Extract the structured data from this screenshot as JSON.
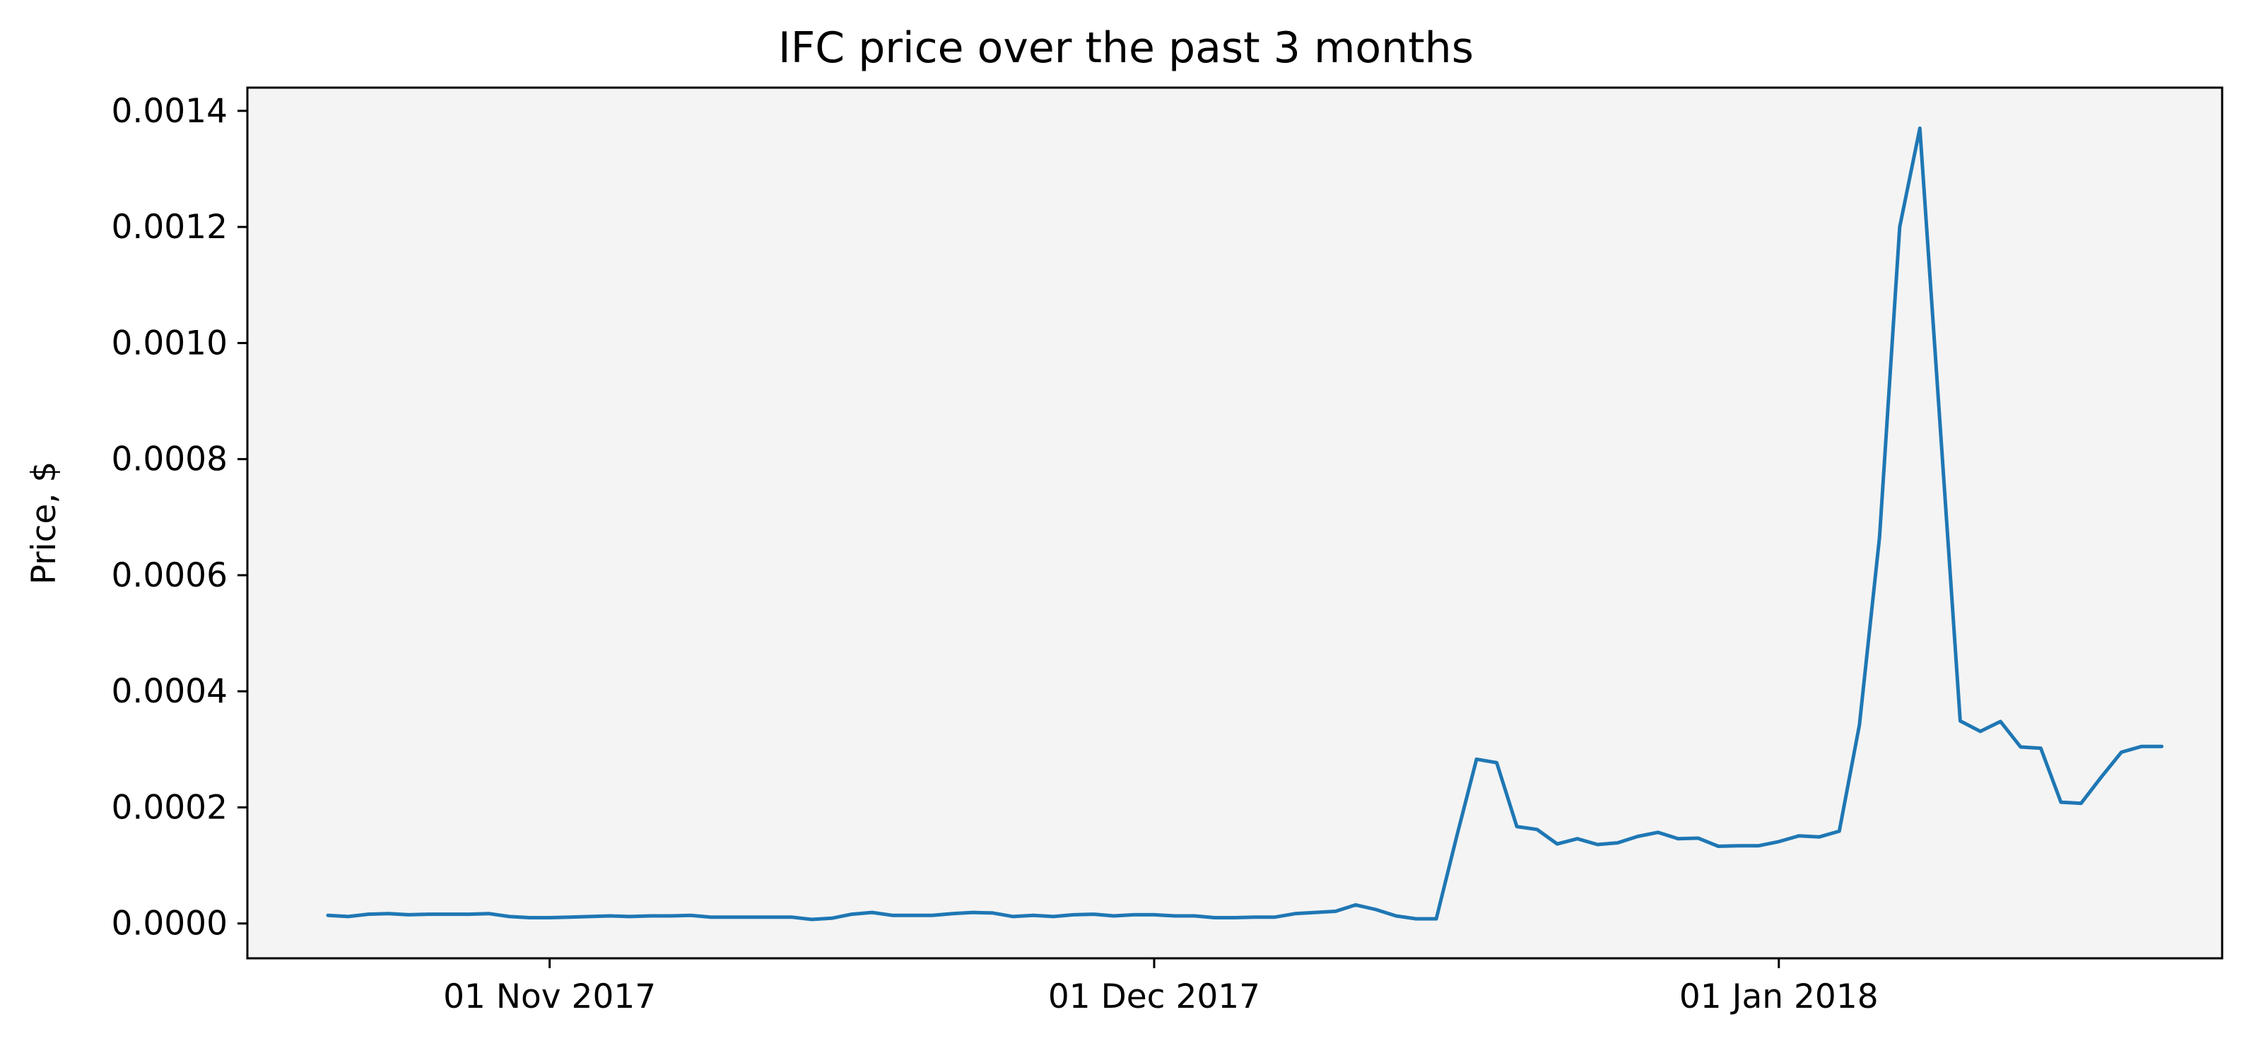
{
  "chart_data": {
    "type": "line",
    "title": "IFC price over the past 3 months",
    "xlabel": "",
    "ylabel": "Price, $",
    "xlim": [
      "2017-10-17",
      "2018-01-23"
    ],
    "ylim": [
      -6e-05,
      0.00144
    ],
    "grid": false,
    "legend": "none",
    "background": "#f4f4f4",
    "series_color": "#1f77b4",
    "x_ticks": [
      {
        "date": "2017-11-01",
        "label": "01 Nov 2017"
      },
      {
        "date": "2017-12-01",
        "label": "01 Dec 2017"
      },
      {
        "date": "2018-01-01",
        "label": "01 Jan 2018"
      }
    ],
    "y_ticks": [
      {
        "value": 0.0,
        "label": "0.0000"
      },
      {
        "value": 0.0002,
        "label": "0.0002"
      },
      {
        "value": 0.0004,
        "label": "0.0004"
      },
      {
        "value": 0.0006,
        "label": "0.0006"
      },
      {
        "value": 0.0008,
        "label": "0.0008"
      },
      {
        "value": 0.001,
        "label": "0.0010"
      },
      {
        "value": 0.0012,
        "label": "0.0012"
      },
      {
        "value": 0.0014,
        "label": "0.0014"
      }
    ],
    "series": [
      {
        "x": [
          "2017-10-21",
          "2017-10-22",
          "2017-10-23",
          "2017-10-24",
          "2017-10-25",
          "2017-10-26",
          "2017-10-27",
          "2017-10-28",
          "2017-10-29",
          "2017-10-30",
          "2017-10-31",
          "2017-11-01",
          "2017-11-02",
          "2017-11-03",
          "2017-11-04",
          "2017-11-05",
          "2017-11-06",
          "2017-11-07",
          "2017-11-08",
          "2017-11-09",
          "2017-11-10",
          "2017-11-11",
          "2017-11-12",
          "2017-11-13",
          "2017-11-14",
          "2017-11-15",
          "2017-11-16",
          "2017-11-17",
          "2017-11-18",
          "2017-11-19",
          "2017-11-20",
          "2017-11-21",
          "2017-11-22",
          "2017-11-23",
          "2017-11-24",
          "2017-11-25",
          "2017-11-26",
          "2017-11-27",
          "2017-11-28",
          "2017-11-29",
          "2017-11-30",
          "2017-12-01",
          "2017-12-02",
          "2017-12-03",
          "2017-12-04",
          "2017-12-05",
          "2017-12-06",
          "2017-12-07",
          "2017-12-08",
          "2017-12-09",
          "2017-12-10",
          "2017-12-11",
          "2017-12-12",
          "2017-12-13",
          "2017-12-14",
          "2017-12-15",
          "2017-12-16",
          "2017-12-17",
          "2017-12-18",
          "2017-12-19",
          "2017-12-20",
          "2017-12-21",
          "2017-12-22",
          "2017-12-23",
          "2017-12-24",
          "2017-12-25",
          "2017-12-26",
          "2017-12-27",
          "2017-12-28",
          "2017-12-29",
          "2017-12-30",
          "2017-12-31",
          "2018-01-01",
          "2018-01-02",
          "2018-01-03",
          "2018-01-04",
          "2018-01-05",
          "2018-01-06",
          "2018-01-07",
          "2018-01-08",
          "2018-01-09",
          "2018-01-10",
          "2018-01-11",
          "2018-01-12",
          "2018-01-13",
          "2018-01-14",
          "2018-01-15",
          "2018-01-16",
          "2018-01-17",
          "2018-01-18",
          "2018-01-19",
          "2018-01-20"
        ],
        "y": [
          1.4e-05,
          1.2e-05,
          1.6e-05,
          1.7e-05,
          1.5e-05,
          1.6e-05,
          1.6e-05,
          1.6e-05,
          1.7e-05,
          1.2e-05,
          1e-05,
          1e-05,
          1.1e-05,
          1.2e-05,
          1.3e-05,
          1.2e-05,
          1.3e-05,
          1.3e-05,
          1.4e-05,
          1.1e-05,
          1.1e-05,
          1.1e-05,
          1.1e-05,
          1.1e-05,
          7e-06,
          9e-06,
          1.6e-05,
          1.9e-05,
          1.4e-05,
          1.4e-05,
          1.4e-05,
          1.7e-05,
          1.9e-05,
          1.8e-05,
          1.2e-05,
          1.4e-05,
          1.2e-05,
          1.5e-05,
          1.6e-05,
          1.3e-05,
          1.5e-05,
          1.5e-05,
          1.3e-05,
          1.3e-05,
          1e-05,
          1e-05,
          1.1e-05,
          1.1e-05,
          1.7e-05,
          1.9e-05,
          2.1e-05,
          3.2e-05,
          2.4e-05,
          1.3e-05,
          8e-06,
          8e-06,
          0.000148,
          0.000283,
          0.000277,
          0.000167,
          0.000162,
          0.000137,
          0.000146,
          0.000136,
          0.000139,
          0.00015,
          0.000157,
          0.000146,
          0.000147,
          0.000133,
          0.000134,
          0.000134,
          0.000141,
          0.000151,
          0.000149,
          0.000159,
          0.000342,
          0.000666,
          0.0012,
          0.00137,
          0.00086,
          0.000349,
          0.000331,
          0.000348,
          0.000304,
          0.000302,
          0.000209,
          0.000207,
          0.000252,
          0.000295,
          0.000305,
          0.000305
        ]
      }
    ]
  }
}
